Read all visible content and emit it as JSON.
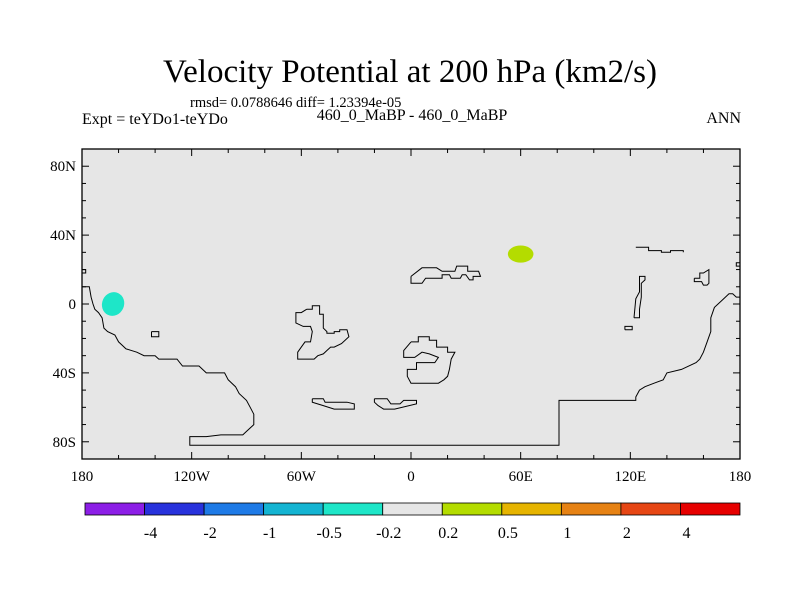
{
  "chart_data": {
    "type": "heatmap",
    "title": "Velocity Potential at 200 hPa (km2/s)",
    "stats_line": "rmsd= 0.0788646 diff= 1.23394e-05",
    "left_label": "Expt = teYDo1-teYDo",
    "center_label": "460_0_MaBP - 460_0_MaBP",
    "right_label": "ANN",
    "map_projection": "cylindrical equidistant",
    "lon_range": [
      -180,
      180
    ],
    "lat_range": [
      -90,
      90
    ],
    "x_ticks": [
      {
        "lon": -180,
        "label": "180"
      },
      {
        "lon": -120,
        "label": "120W"
      },
      {
        "lon": -60,
        "label": "60W"
      },
      {
        "lon": 0,
        "label": "0"
      },
      {
        "lon": 60,
        "label": "60E"
      },
      {
        "lon": 120,
        "label": "120E"
      },
      {
        "lon": 180,
        "label": "180"
      }
    ],
    "y_ticks": [
      {
        "lat": 80,
        "label": "80N"
      },
      {
        "lat": 40,
        "label": "40N"
      },
      {
        "lat": 0,
        "label": "0"
      },
      {
        "lat": -40,
        "label": "40S"
      },
      {
        "lat": -80,
        "label": "80S"
      }
    ],
    "background_level": {
      "range": [
        -0.2,
        0.2
      ],
      "color": "#e6e6e6"
    },
    "anomalies": [
      {
        "name": "negative-anomaly",
        "lon": -163,
        "lat": 0,
        "rlon": 6,
        "rlat": 7,
        "rotate": 25,
        "level_range": [
          -0.5,
          -0.2
        ],
        "color": "#1ee6c8"
      },
      {
        "name": "positive-anomaly",
        "lon": 60,
        "lat": 29,
        "rlon": 7,
        "rlat": 5,
        "rotate": 0,
        "level_range": [
          0.2,
          0.5
        ],
        "color": "#b4dc00"
      }
    ],
    "coastlines": [
      [
        [
          -180,
          20
        ],
        [
          -178,
          20
        ],
        [
          -178,
          18
        ],
        [
          -180,
          18
        ]
      ],
      [
        [
          -180,
          10
        ],
        [
          -176,
          10
        ],
        [
          -175,
          4
        ],
        [
          -174,
          0
        ],
        [
          -173,
          -3
        ],
        [
          -171,
          -5
        ],
        [
          -169,
          -8
        ],
        [
          -168,
          -14
        ],
        [
          -166,
          -16
        ],
        [
          -162,
          -18
        ],
        [
          -160,
          -22
        ],
        [
          -158,
          -24
        ],
        [
          -156,
          -26
        ],
        [
          -150,
          -28
        ],
        [
          -146,
          -30
        ],
        [
          -140,
          -30
        ],
        [
          -138,
          -32
        ],
        [
          -128,
          -32
        ],
        [
          -125,
          -36
        ],
        [
          -116,
          -36
        ],
        [
          -112,
          -40
        ],
        [
          -102,
          -40
        ],
        [
          -100,
          -44
        ],
        [
          -96,
          -48
        ],
        [
          -94,
          -52
        ],
        [
          -90,
          -56
        ],
        [
          -88,
          -60
        ],
        [
          -86,
          -64
        ],
        [
          -86,
          -70
        ],
        [
          -90,
          -74
        ],
        [
          -92,
          -76
        ],
        [
          -104,
          -76
        ],
        [
          -112,
          -77
        ],
        [
          -121,
          -77
        ],
        [
          -121,
          -82
        ],
        [
          -45,
          -82
        ],
        [
          0,
          -82
        ],
        [
          40,
          -82
        ],
        [
          81,
          -82
        ],
        [
          81,
          -56
        ],
        [
          123,
          -56
        ],
        [
          123,
          -54
        ],
        [
          125,
          -50
        ],
        [
          128,
          -48
        ],
        [
          133,
          -46
        ],
        [
          138,
          -44
        ],
        [
          140,
          -40
        ],
        [
          148,
          -38
        ],
        [
          156,
          -34
        ],
        [
          158,
          -32
        ],
        [
          160,
          -28
        ],
        [
          162,
          -22
        ],
        [
          164,
          -16
        ],
        [
          164,
          -8
        ],
        [
          166,
          -2
        ],
        [
          170,
          2
        ],
        [
          174,
          6
        ],
        [
          176,
          6
        ],
        [
          178,
          4
        ],
        [
          180,
          4
        ]
      ],
      [
        [
          -142,
          -16
        ],
        [
          -138,
          -16
        ],
        [
          -138,
          -19
        ],
        [
          -142,
          -19
        ],
        [
          -142,
          -16
        ]
      ],
      [
        [
          -57,
          -3
        ],
        [
          -54,
          -3
        ],
        [
          -54,
          -1
        ],
        [
          -50,
          -1
        ],
        [
          -50,
          -6
        ],
        [
          -48,
          -6
        ],
        [
          -48,
          -14
        ],
        [
          -46,
          -16
        ],
        [
          -46,
          -17
        ],
        [
          -42,
          -17
        ],
        [
          -42,
          -16
        ],
        [
          -39,
          -16
        ],
        [
          -39,
          -15
        ],
        [
          -35,
          -15
        ],
        [
          -34,
          -19
        ],
        [
          -38,
          -23
        ],
        [
          -42,
          -25
        ],
        [
          -44,
          -25
        ],
        [
          -46,
          -27
        ],
        [
          -48,
          -29
        ],
        [
          -51,
          -30
        ],
        [
          -53,
          -32
        ],
        [
          -62,
          -32
        ],
        [
          -62,
          -28
        ],
        [
          -60,
          -25
        ],
        [
          -58,
          -22
        ],
        [
          -55,
          -22
        ],
        [
          -54,
          -16
        ],
        [
          -55,
          -13
        ],
        [
          -59,
          -13
        ],
        [
          -63,
          -11
        ],
        [
          -63,
          -5
        ],
        [
          -60,
          -5
        ],
        [
          -57,
          -3
        ]
      ],
      [
        [
          -54,
          -55
        ],
        [
          -48,
          -55
        ],
        [
          -47,
          -57
        ],
        [
          -35,
          -57
        ],
        [
          -31,
          -58
        ],
        [
          -31,
          -61
        ],
        [
          -42,
          -61
        ],
        [
          -48,
          -59
        ],
        [
          -54,
          -57
        ],
        [
          -54,
          -55
        ]
      ],
      [
        [
          -20,
          -55
        ],
        [
          -13,
          -55
        ],
        [
          -11,
          -58
        ],
        [
          -6,
          -58
        ],
        [
          -4,
          -56
        ],
        [
          3,
          -56
        ],
        [
          3,
          -58
        ],
        [
          -9,
          -61
        ],
        [
          -15,
          -61
        ],
        [
          -18,
          -59
        ],
        [
          -20,
          -57
        ],
        [
          -20,
          -55
        ]
      ],
      [
        [
          0,
          -22
        ],
        [
          4,
          -22
        ],
        [
          4,
          -19
        ],
        [
          10,
          -19
        ],
        [
          10,
          -21
        ],
        [
          14,
          -21
        ],
        [
          14,
          -25
        ],
        [
          20,
          -25
        ],
        [
          20,
          -28
        ],
        [
          24,
          -28
        ],
        [
          22,
          -32
        ],
        [
          21,
          -38
        ],
        [
          20,
          -42
        ],
        [
          18,
          -44
        ],
        [
          15,
          -46
        ],
        [
          0,
          -46
        ],
        [
          -2,
          -42
        ],
        [
          -2,
          -38
        ],
        [
          3,
          -38
        ],
        [
          3,
          -34
        ],
        [
          13,
          -34
        ],
        [
          15,
          -31
        ],
        [
          10,
          -29
        ],
        [
          6,
          -28
        ],
        [
          2,
          -31
        ],
        [
          -4,
          -31
        ],
        [
          -4,
          -27
        ],
        [
          0,
          -22
        ]
      ],
      [
        [
          0,
          16
        ],
        [
          0,
          12
        ],
        [
          6,
          12
        ],
        [
          8,
          15
        ],
        [
          17,
          15
        ],
        [
          17,
          17
        ],
        [
          21,
          17
        ],
        [
          22,
          15
        ],
        [
          27,
          15
        ],
        [
          28,
          17
        ],
        [
          30,
          17
        ],
        [
          32,
          14
        ],
        [
          34,
          14
        ],
        [
          34,
          16
        ],
        [
          38,
          16
        ],
        [
          37,
          19
        ],
        [
          31,
          19
        ],
        [
          31,
          22
        ],
        [
          25,
          22
        ],
        [
          24,
          19
        ],
        [
          17,
          19
        ],
        [
          14,
          21
        ],
        [
          6,
          21
        ],
        [
          0,
          16
        ]
      ],
      [
        [
          123,
          33
        ],
        [
          130,
          33
        ],
        [
          130,
          31
        ],
        [
          137,
          31
        ],
        [
          137,
          30
        ],
        [
          142,
          30
        ],
        [
          142,
          31
        ],
        [
          149,
          31
        ],
        [
          149,
          30
        ]
      ],
      [
        [
          117,
          -15
        ],
        [
          121,
          -15
        ],
        [
          121,
          -13
        ],
        [
          117,
          -13
        ],
        [
          117,
          -15
        ]
      ],
      [
        [
          122,
          -8
        ],
        [
          125,
          -8
        ],
        [
          125,
          -3
        ],
        [
          126,
          4
        ],
        [
          126,
          12
        ],
        [
          128,
          14
        ],
        [
          128,
          16
        ],
        [
          125,
          16
        ],
        [
          125,
          7
        ],
        [
          123,
          3
        ],
        [
          122,
          -8
        ]
      ],
      [
        [
          155,
          15
        ],
        [
          158,
          15
        ],
        [
          158,
          18
        ],
        [
          160,
          18
        ],
        [
          163,
          20
        ],
        [
          163,
          12
        ],
        [
          162,
          11
        ],
        [
          160,
          11
        ],
        [
          159,
          13
        ],
        [
          155,
          13
        ],
        [
          155,
          15
        ]
      ],
      [
        [
          180,
          24
        ],
        [
          178,
          24
        ],
        [
          178,
          22
        ],
        [
          180,
          22
        ]
      ]
    ],
    "colorbar": {
      "colors": [
        "#8c1ee6",
        "#2832dc",
        "#1e7ae6",
        "#14b4d2",
        "#1ee6c8",
        "#e6e6e6",
        "#b4dc00",
        "#e6b400",
        "#e68214",
        "#e64614",
        "#e60000"
      ],
      "labels": [
        "-4",
        "-2",
        "-1",
        "-0.5",
        "-0.2",
        "0.2",
        "0.5",
        "1",
        "2",
        "4"
      ]
    }
  }
}
